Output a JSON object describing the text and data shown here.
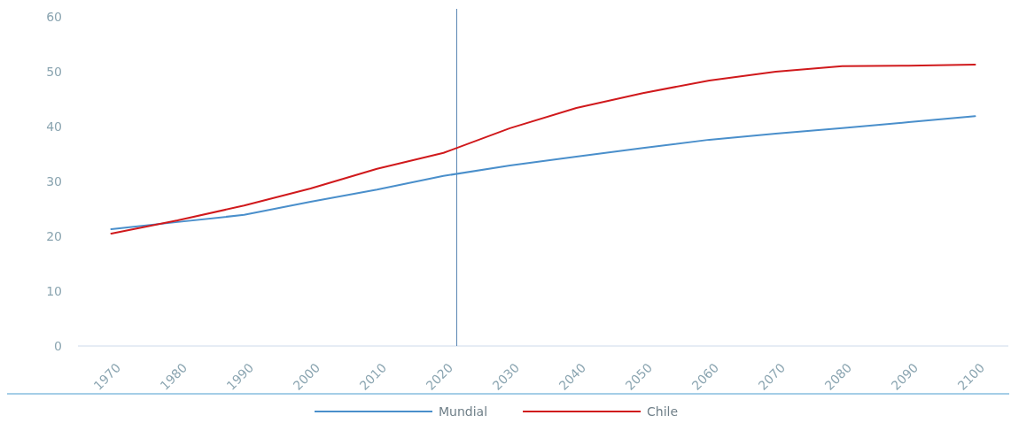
{
  "chart_data": {
    "type": "line",
    "x": [
      1970,
      1980,
      1990,
      2000,
      2010,
      2020,
      2030,
      2040,
      2050,
      2060,
      2070,
      2080,
      2090,
      2100
    ],
    "xlim": [
      1965,
      2105
    ],
    "xticks": [
      1970,
      1980,
      1990,
      2000,
      2010,
      2020,
      2030,
      2040,
      2050,
      2060,
      2070,
      2080,
      2090,
      2100
    ],
    "ylim": [
      0,
      60
    ],
    "yticks": [
      0,
      10,
      20,
      30,
      40,
      50,
      60
    ],
    "series": [
      {
        "name": "Mundial",
        "color": "#4a8fcb",
        "values": [
          21.3,
          22.6,
          23.9,
          26.3,
          28.5,
          31.0,
          32.9,
          34.5,
          36.1,
          37.6,
          38.7,
          39.7,
          40.8,
          41.9
        ]
      },
      {
        "name": "Chile",
        "color": "#d0191c",
        "values": [
          20.5,
          22.9,
          25.6,
          28.7,
          32.3,
          35.2,
          39.7,
          43.4,
          46.1,
          48.4,
          50.0,
          51.0,
          51.1,
          51.3
        ]
      }
    ],
    "ref_lines": [
      {
        "axis": "x",
        "value": 2022,
        "color": "#5b87b3"
      }
    ],
    "grid": false,
    "legend": "bottom",
    "line_style": "solid",
    "marker": "none"
  }
}
